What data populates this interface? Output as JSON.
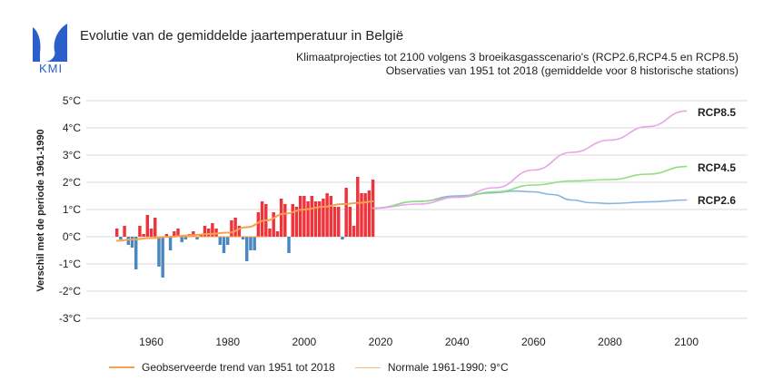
{
  "header": {
    "title": "Evolutie van de gemiddelde jaartemperatuur in België",
    "subtitle1": "Klimaatprojecties tot 2100 volgens 3 broeikasgasscenario's (RCP2.6,RCP4.5 en RCP8.5)",
    "subtitle2": "Observaties van 1951 tot 2018 (gemiddelde voor 8 historische stations)",
    "logo_text": "KMI"
  },
  "legend": {
    "trend_label": "Geobserveerde trend van 1951 tot 2018",
    "normal_label": "Normale 1961-1990: 9°C"
  },
  "colors": {
    "positive_bar": "#f0333a",
    "negative_bar": "#4a86c0",
    "trend": "#f5a14f",
    "rcp26": "#89b4e0",
    "rcp45": "#8fe07a",
    "rcp85": "#e8a3ea",
    "grid": "#d8d8d8",
    "logo": "#2a5ec8"
  },
  "chart_data": {
    "type": "bar+line",
    "title": "Evolutie van de gemiddelde jaartemperatuur in België",
    "ylabel": "Verschil met de periode 1961-1990",
    "xlabel": "",
    "ylim": [
      -3,
      5
    ],
    "xlim": [
      1943,
      2116
    ],
    "yticks": [
      5,
      4,
      3,
      2,
      1,
      0,
      -1,
      -2,
      -3
    ],
    "ytick_labels": [
      "5°C",
      "4°C",
      "3°C",
      "2°C",
      "1°C",
      "0°C",
      "-1°C",
      "-2°C",
      "-3°C"
    ],
    "xticks": [
      1960,
      1980,
      2000,
      2020,
      2040,
      2060,
      2080,
      2100
    ],
    "grid": true,
    "observations": {
      "years": [
        1951,
        1952,
        1953,
        1954,
        1955,
        1956,
        1957,
        1958,
        1959,
        1960,
        1961,
        1962,
        1963,
        1964,
        1965,
        1966,
        1967,
        1968,
        1969,
        1970,
        1971,
        1972,
        1973,
        1974,
        1975,
        1976,
        1977,
        1978,
        1979,
        1980,
        1981,
        1982,
        1983,
        1984,
        1985,
        1986,
        1987,
        1988,
        1989,
        1990,
        1991,
        1992,
        1993,
        1994,
        1995,
        1996,
        1997,
        1998,
        1999,
        2000,
        2001,
        2002,
        2003,
        2004,
        2005,
        2006,
        2007,
        2008,
        2009,
        2010,
        2011,
        2012,
        2013,
        2014,
        2015,
        2016,
        2017,
        2018
      ],
      "anomalies": [
        0.3,
        -0.1,
        0.4,
        -0.3,
        -0.4,
        -1.2,
        0.4,
        0.1,
        0.8,
        0.3,
        0.7,
        -1.1,
        -1.5,
        0.1,
        -0.5,
        0.2,
        0.3,
        -0.2,
        -0.1,
        0.1,
        0.2,
        -0.1,
        0.1,
        0.4,
        0.3,
        0.5,
        0.3,
        -0.3,
        -0.6,
        -0.3,
        0.6,
        0.7,
        0.4,
        -0.1,
        -0.9,
        -0.5,
        -0.5,
        0.9,
        1.3,
        1.2,
        0.3,
        0.9,
        0.2,
        1.4,
        1.2,
        -0.6,
        1.2,
        1.1,
        1.5,
        1.5,
        1.3,
        1.5,
        1.3,
        1.3,
        1.4,
        1.6,
        1.5,
        1.1,
        1.1,
        -0.1,
        1.8,
        1.1,
        0.4,
        2.2,
        1.6,
        1.6,
        1.7,
        2.1
      ]
    },
    "series": [
      {
        "name": "Geobserveerde trend van 1951 tot 2018",
        "x": [
          1951,
          1955,
          1960,
          1965,
          1970,
          1975,
          1980,
          1985,
          1990,
          1995,
          2000,
          2005,
          2010,
          2015,
          2018
        ],
        "y": [
          -0.15,
          -0.1,
          -0.05,
          0.0,
          0.05,
          0.1,
          0.15,
          0.35,
          0.6,
          0.85,
          1.0,
          1.1,
          1.2,
          1.25,
          1.3
        ]
      },
      {
        "name": "Normale 1961-1990: 9°C",
        "x": [
          1961,
          1990
        ],
        "y": [
          0,
          0
        ]
      },
      {
        "name": "RCP2.6",
        "x": [
          2018,
          2030,
          2040,
          2050,
          2055,
          2060,
          2065,
          2070,
          2075,
          2080,
          2090,
          2100
        ],
        "y": [
          1.05,
          1.3,
          1.5,
          1.62,
          1.68,
          1.65,
          1.55,
          1.35,
          1.25,
          1.22,
          1.28,
          1.35
        ]
      },
      {
        "name": "RCP4.5",
        "x": [
          2018,
          2030,
          2040,
          2050,
          2060,
          2070,
          2080,
          2090,
          2100
        ],
        "y": [
          1.05,
          1.3,
          1.45,
          1.65,
          1.9,
          2.05,
          2.1,
          2.3,
          2.58
        ]
      },
      {
        "name": "RCP8.5",
        "x": [
          2018,
          2030,
          2040,
          2050,
          2060,
          2070,
          2080,
          2090,
          2100
        ],
        "y": [
          1.05,
          1.2,
          1.45,
          1.8,
          2.45,
          3.1,
          3.55,
          4.05,
          4.62
        ]
      }
    ],
    "series_labels": {
      "rcp26": "RCP2.6",
      "rcp45": "RCP4.5",
      "rcp85": "RCP8.5"
    }
  }
}
